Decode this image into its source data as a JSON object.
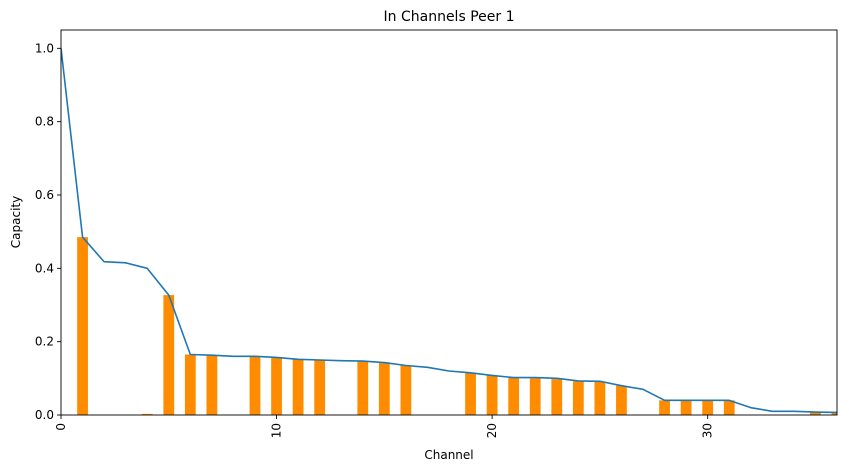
{
  "chart_data": {
    "type": "bar",
    "title": "In Channels Peer 1",
    "xlabel": "Channel",
    "ylabel": "Capacity",
    "xlim": [
      0,
      36
    ],
    "ylim": [
      0,
      1.05
    ],
    "x_ticks": [
      0,
      10,
      20,
      30
    ],
    "x_tick_labels": [
      "0",
      "10",
      "20",
      "30"
    ],
    "y_ticks": [
      0.0,
      0.2,
      0.4,
      0.6,
      0.8,
      1.0
    ],
    "y_tick_labels": [
      "0.0",
      "0.2",
      "0.4",
      "0.6",
      "0.8",
      "1.0"
    ],
    "grid": false,
    "colors": {
      "bars": "#ff8c00",
      "line": "#1f77b4",
      "axes": "#000000"
    },
    "series": [
      {
        "type": "bar",
        "categories": [
          0,
          1,
          2,
          3,
          4,
          5,
          6,
          7,
          8,
          9,
          10,
          11,
          12,
          13,
          14,
          15,
          16,
          17,
          18,
          19,
          20,
          21,
          22,
          23,
          24,
          25,
          26,
          27,
          28,
          29,
          30,
          31,
          32,
          33,
          34,
          35,
          36
        ],
        "values": [
          0,
          0.485,
          0,
          0,
          0.003,
          0.327,
          0.165,
          0.163,
          0,
          0.16,
          0.157,
          0.152,
          0.15,
          0,
          0.147,
          0.143,
          0.135,
          0,
          0,
          0.115,
          0.108,
          0.102,
          0.1,
          0.098,
          0.092,
          0.09,
          0.08,
          0,
          0.04,
          0.04,
          0.04,
          0.04,
          0,
          0,
          0,
          0.008,
          0.007
        ]
      },
      {
        "type": "line",
        "x": [
          0,
          1,
          2,
          3,
          4,
          5,
          6,
          7,
          8,
          9,
          10,
          11,
          12,
          13,
          14,
          15,
          16,
          17,
          18,
          19,
          20,
          21,
          22,
          23,
          24,
          25,
          26,
          27,
          28,
          29,
          30,
          31,
          32,
          33,
          34,
          35,
          36
        ],
        "values": [
          1.0,
          0.485,
          0.418,
          0.415,
          0.4,
          0.327,
          0.165,
          0.163,
          0.16,
          0.16,
          0.157,
          0.152,
          0.15,
          0.148,
          0.147,
          0.143,
          0.135,
          0.13,
          0.12,
          0.115,
          0.108,
          0.102,
          0.102,
          0.1,
          0.093,
          0.092,
          0.08,
          0.07,
          0.04,
          0.04,
          0.04,
          0.04,
          0.02,
          0.01,
          0.01,
          0.008,
          0.007
        ]
      }
    ]
  }
}
